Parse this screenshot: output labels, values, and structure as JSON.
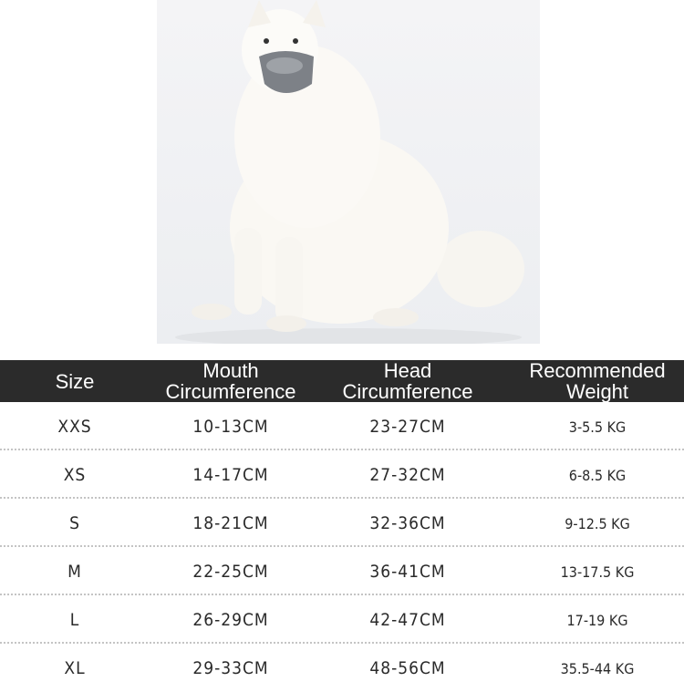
{
  "photo": {
    "subject": "white dog wearing gray muzzle",
    "background": "#eef0f2",
    "muzzle_color": "#7d8187"
  },
  "table": {
    "header_bg": "#2b2b2b",
    "headers": [
      {
        "line1": "Size",
        "line2": ""
      },
      {
        "line1": "Mouth",
        "line2": "Circumference"
      },
      {
        "line1": "Head",
        "line2": "Circumference"
      },
      {
        "line1": "Recommended",
        "line2": "Weight"
      }
    ],
    "rows": [
      {
        "size": "XXS",
        "mouth": "10-13CM",
        "head": "23-27CM",
        "weight": "3-5.5 KG"
      },
      {
        "size": "XS",
        "mouth": "14-17CM",
        "head": "27-32CM",
        "weight": "6-8.5 KG"
      },
      {
        "size": "S",
        "mouth": "18-21CM",
        "head": "32-36CM",
        "weight": "9-12.5 KG"
      },
      {
        "size": "M",
        "mouth": "22-25CM",
        "head": "36-41CM",
        "weight": "13-17.5 KG"
      },
      {
        "size": "L",
        "mouth": "26-29CM",
        "head": "42-47CM",
        "weight": "17-19 KG"
      },
      {
        "size": "XL",
        "mouth": "29-33CM",
        "head": "48-56CM",
        "weight": "35.5-44 KG"
      }
    ]
  }
}
